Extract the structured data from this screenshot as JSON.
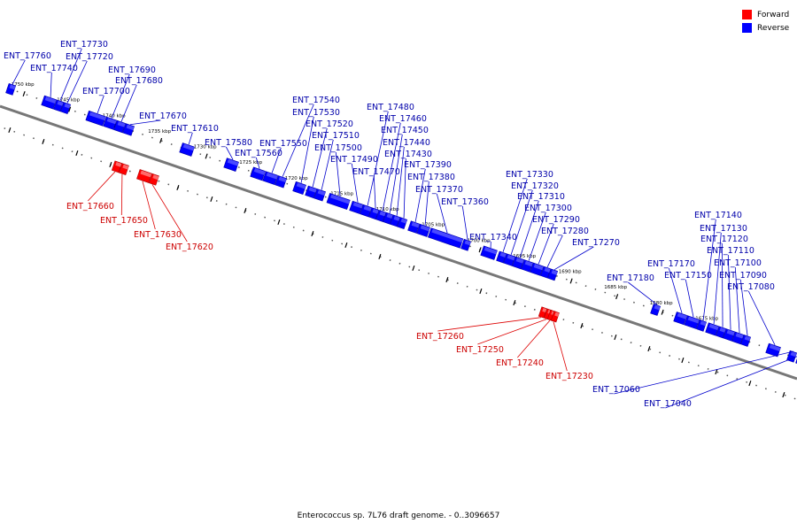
{
  "legend": {
    "forward": {
      "label": "Forward",
      "color": "#ff0000"
    },
    "reverse": {
      "label": "Reverse",
      "color": "#0000ff"
    }
  },
  "caption": "Enterococcus sp. 7L76 draft genome. - 0..3096657",
  "scale_ticks": [
    {
      "kbp": 1750,
      "label": "1750 kbp"
    },
    {
      "kbp": 1745,
      "label": "1745 kbp"
    },
    {
      "kbp": 1740,
      "label": "1740 kbp"
    },
    {
      "kbp": 1735,
      "label": "1735 kbp"
    },
    {
      "kbp": 1730,
      "label": "1730 kbp"
    },
    {
      "kbp": 1725,
      "label": "1725 kbp"
    },
    {
      "kbp": 1720,
      "label": "1720 kbp"
    },
    {
      "kbp": 1715,
      "label": "1715 kbp"
    },
    {
      "kbp": 1710,
      "label": "1710 kbp"
    },
    {
      "kbp": 1705,
      "label": "1705 kbp"
    },
    {
      "kbp": 1700,
      "label": "1700 kbp"
    },
    {
      "kbp": 1695,
      "label": "1695 kbp"
    },
    {
      "kbp": 1690,
      "label": "1690 kbp"
    },
    {
      "kbp": 1685,
      "label": "1685 kbp"
    },
    {
      "kbp": 1680,
      "label": "1680 kbp"
    },
    {
      "kbp": 1675,
      "label": "1675 kbp"
    }
  ],
  "genes": [
    {
      "name": "ENT_17760",
      "strand": "reverse"
    },
    {
      "name": "ENT_17740",
      "strand": "reverse"
    },
    {
      "name": "ENT_17730",
      "strand": "reverse"
    },
    {
      "name": "ENT_17720",
      "strand": "reverse"
    },
    {
      "name": "ENT_17700",
      "strand": "reverse"
    },
    {
      "name": "ENT_17690",
      "strand": "reverse"
    },
    {
      "name": "ENT_17680",
      "strand": "reverse"
    },
    {
      "name": "ENT_17670",
      "strand": "reverse"
    },
    {
      "name": "ENT_17660",
      "strand": "forward"
    },
    {
      "name": "ENT_17650",
      "strand": "forward"
    },
    {
      "name": "ENT_17630",
      "strand": "forward"
    },
    {
      "name": "ENT_17620",
      "strand": "forward"
    },
    {
      "name": "ENT_17610",
      "strand": "reverse"
    },
    {
      "name": "ENT_17580",
      "strand": "reverse"
    },
    {
      "name": "ENT_17560",
      "strand": "reverse"
    },
    {
      "name": "ENT_17550",
      "strand": "reverse"
    },
    {
      "name": "ENT_17540",
      "strand": "reverse"
    },
    {
      "name": "ENT_17530",
      "strand": "reverse"
    },
    {
      "name": "ENT_17520",
      "strand": "reverse"
    },
    {
      "name": "ENT_17510",
      "strand": "reverse"
    },
    {
      "name": "ENT_17500",
      "strand": "reverse"
    },
    {
      "name": "ENT_17490",
      "strand": "reverse"
    },
    {
      "name": "ENT_17480",
      "strand": "reverse"
    },
    {
      "name": "ENT_17470",
      "strand": "reverse"
    },
    {
      "name": "ENT_17460",
      "strand": "reverse"
    },
    {
      "name": "ENT_17450",
      "strand": "reverse"
    },
    {
      "name": "ENT_17440",
      "strand": "reverse"
    },
    {
      "name": "ENT_17430",
      "strand": "reverse"
    },
    {
      "name": "ENT_17390",
      "strand": "reverse"
    },
    {
      "name": "ENT_17380",
      "strand": "reverse"
    },
    {
      "name": "ENT_17370",
      "strand": "reverse"
    },
    {
      "name": "ENT_17360",
      "strand": "reverse"
    },
    {
      "name": "ENT_17340",
      "strand": "reverse"
    },
    {
      "name": "ENT_17330",
      "strand": "reverse"
    },
    {
      "name": "ENT_17320",
      "strand": "reverse"
    },
    {
      "name": "ENT_17310",
      "strand": "reverse"
    },
    {
      "name": "ENT_17300",
      "strand": "reverse"
    },
    {
      "name": "ENT_17290",
      "strand": "reverse"
    },
    {
      "name": "ENT_17280",
      "strand": "reverse"
    },
    {
      "name": "ENT_17270",
      "strand": "reverse"
    },
    {
      "name": "ENT_17260",
      "strand": "forward"
    },
    {
      "name": "ENT_17250",
      "strand": "forward"
    },
    {
      "name": "ENT_17240",
      "strand": "forward"
    },
    {
      "name": "ENT_17230",
      "strand": "forward"
    },
    {
      "name": "ENT_17180",
      "strand": "reverse"
    },
    {
      "name": "ENT_17170",
      "strand": "reverse"
    },
    {
      "name": "ENT_17150",
      "strand": "reverse"
    },
    {
      "name": "ENT_17140",
      "strand": "reverse"
    },
    {
      "name": "ENT_17130",
      "strand": "reverse"
    },
    {
      "name": "ENT_17120",
      "strand": "reverse"
    },
    {
      "name": "ENT_17110",
      "strand": "reverse"
    },
    {
      "name": "ENT_17100",
      "strand": "reverse"
    },
    {
      "name": "ENT_17090",
      "strand": "reverse"
    },
    {
      "name": "ENT_17080",
      "strand": "reverse"
    },
    {
      "name": "ENT_17060",
      "strand": "reverse"
    },
    {
      "name": "ENT_17040",
      "strand": "reverse"
    }
  ]
}
